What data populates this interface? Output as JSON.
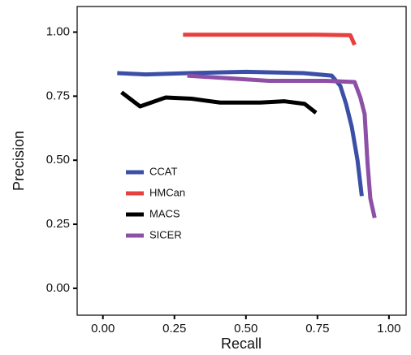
{
  "chart_data": {
    "type": "line",
    "x_label": "Recall",
    "y_label": "Precision",
    "xlim": [
      -0.09,
      1.06
    ],
    "ylim": [
      -0.105,
      1.1
    ],
    "xticks": [
      {
        "value": 0,
        "label": "0.00"
      },
      {
        "value": 0.25,
        "label": "0.25"
      },
      {
        "value": 0.5,
        "label": "0.50"
      },
      {
        "value": 0.75,
        "label": "0.75"
      },
      {
        "value": 1,
        "label": "1.00"
      }
    ],
    "yticks": [
      {
        "value": 0,
        "label": "0.00"
      },
      {
        "value": 0.25,
        "label": "0.25"
      },
      {
        "value": 0.5,
        "label": "0.50"
      },
      {
        "value": 0.75,
        "label": "0.75"
      },
      {
        "value": 1,
        "label": "1.00"
      }
    ],
    "series": [
      {
        "name": "CCAT",
        "color": "#3b4fa6",
        "x": [
          0.05,
          0.15,
          0.3,
          0.5,
          0.7,
          0.8,
          0.83,
          0.85,
          0.87,
          0.89,
          0.905
        ],
        "values": [
          0.84,
          0.835,
          0.84,
          0.845,
          0.84,
          0.83,
          0.79,
          0.72,
          0.63,
          0.5,
          0.36
        ]
      },
      {
        "name": "HMCan",
        "color": "#e8403f",
        "x": [
          0.28,
          0.5,
          0.75,
          0.865,
          0.88
        ],
        "values": [
          0.99,
          0.99,
          0.99,
          0.988,
          0.95
        ]
      },
      {
        "name": "MACS",
        "color": "#000000",
        "x": [
          0.065,
          0.13,
          0.22,
          0.31,
          0.41,
          0.55,
          0.635,
          0.705,
          0.745
        ],
        "values": [
          0.765,
          0.71,
          0.745,
          0.74,
          0.725,
          0.725,
          0.73,
          0.72,
          0.685
        ]
      },
      {
        "name": "SICER",
        "color": "#8e4fa6",
        "x": [
          0.295,
          0.435,
          0.58,
          0.78,
          0.88,
          0.9,
          0.915,
          0.925,
          0.935,
          0.95
        ],
        "values": [
          0.83,
          0.82,
          0.81,
          0.81,
          0.805,
          0.745,
          0.68,
          0.49,
          0.35,
          0.275
        ]
      }
    ]
  }
}
